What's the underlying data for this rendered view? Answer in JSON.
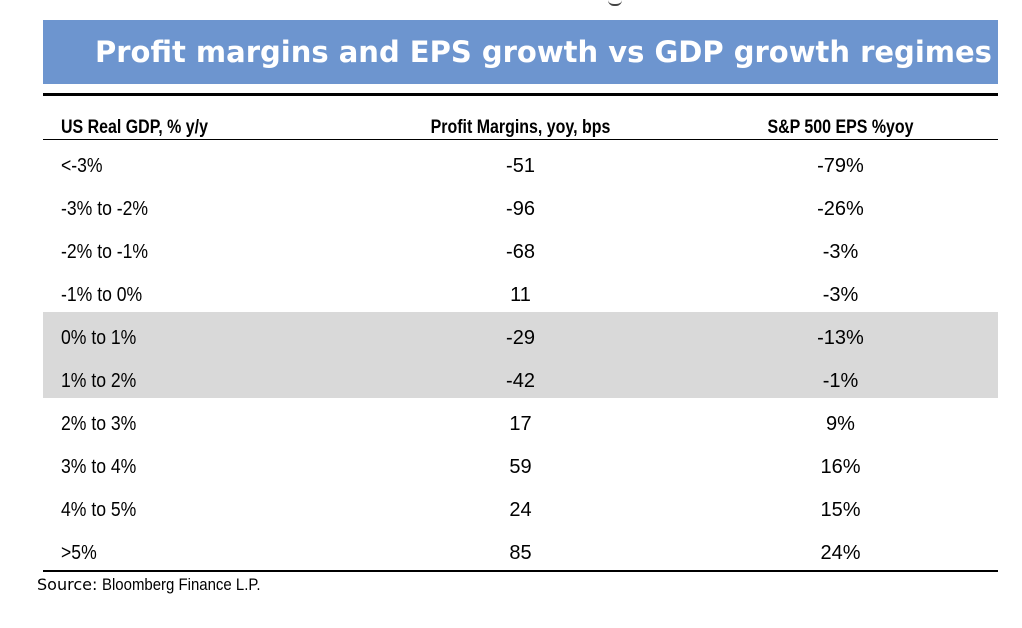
{
  "title": "Profit margins and EPS growth vs GDP growth regimes",
  "columns": [
    "US Real GDP, % y/y",
    "Profit Margins, yoy, bps",
    "S&P 500 EPS %yoy"
  ],
  "rows": [
    {
      "gdp": "<-3%",
      "margin": "-51",
      "eps": "-79%",
      "shaded": false
    },
    {
      "gdp": "-3% to -2%",
      "margin": "-96",
      "eps": "-26%",
      "shaded": false
    },
    {
      "gdp": "-2% to -1%",
      "margin": "-68",
      "eps": "-3%",
      "shaded": false
    },
    {
      "gdp": "-1% to 0%",
      "margin": "11",
      "eps": "-3%",
      "shaded": false
    },
    {
      "gdp": "0% to 1%",
      "margin": "-29",
      "eps": "-13%",
      "shaded": true
    },
    {
      "gdp": "1% to 2%",
      "margin": "-42",
      "eps": "-1%",
      "shaded": true
    },
    {
      "gdp": "2% to 3%",
      "margin": "17",
      "eps": "9%",
      "shaded": false
    },
    {
      "gdp": "3% to 4%",
      "margin": "59",
      "eps": "16%",
      "shaded": false
    },
    {
      "gdp": "4% to 5%",
      "margin": "24",
      "eps": "15%",
      "shaded": false
    },
    {
      "gdp": ">5%",
      "margin": "85",
      "eps": "24%",
      "shaded": false
    }
  ],
  "source": {
    "label": "Source:",
    "text": "Bloomberg Finance L.P."
  },
  "colors": {
    "banner": "#6d95cf",
    "title_text": "#ffffff",
    "shaded_row": "#d9d9d9"
  }
}
